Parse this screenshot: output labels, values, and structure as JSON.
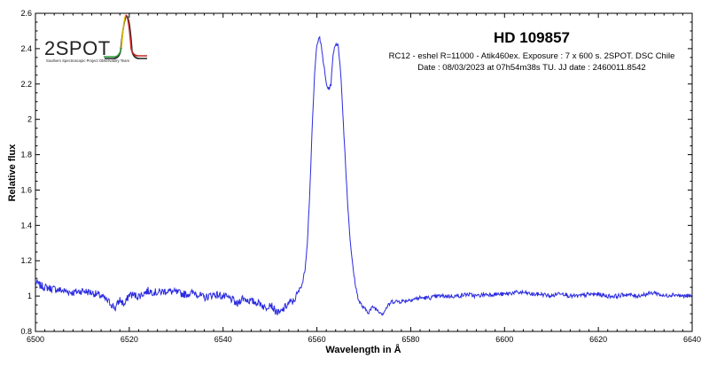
{
  "logo": {
    "name": "2SPOT",
    "tagline": "Southern Spectroscopic Project Observatory Team",
    "colors": [
      "#2e9e3e",
      "#e0b800",
      "#c62828"
    ]
  },
  "chart_data": {
    "type": "line",
    "title": "HD 109857",
    "subtitle_lines": [
      "RC12 - eshel R=11000 - Atik460ex. Exposure : 7 x 600 s. 2SPOT. DSC Chile",
      "Date : 08/03/2023 at 07h54m38s TU. JJ date : 2460011.8542"
    ],
    "xlabel": "Wavelength in Å",
    "ylabel": "Relative flux",
    "xlim": [
      6500,
      6640
    ],
    "ylim": [
      0.8,
      2.6
    ],
    "xticks": [
      "6500",
      "6520",
      "6540",
      "6560",
      "6580",
      "6600",
      "6620",
      "6640"
    ],
    "yticks": [
      "0.8",
      "1",
      "1.2",
      "1.4",
      "1.6",
      "1.8",
      "2",
      "2.2",
      "2.4",
      "2.6"
    ],
    "grid": false,
    "line_color": "#2a2ae0",
    "series": [
      {
        "x": [
          6500,
          6501,
          6502,
          6504,
          6506,
          6508,
          6510,
          6512,
          6514,
          6515,
          6516,
          6517,
          6518,
          6519,
          6520,
          6522,
          6524,
          6526,
          6528,
          6530,
          6532,
          6534,
          6536,
          6538,
          6540,
          6542,
          6543,
          6544,
          6546,
          6548,
          6549,
          6550,
          6551,
          6552,
          6553,
          6554,
          6555,
          6556,
          6557,
          6557.5,
          6558,
          6558.5,
          6559,
          6559.5,
          6560,
          6560.5,
          6561,
          6561.5,
          6562,
          6562.5,
          6563,
          6563.5,
          6564,
          6564.5,
          6565,
          6565.5,
          6566,
          6566.5,
          6567,
          6567.5,
          6568,
          6568.5,
          6569,
          6570,
          6571,
          6572,
          6573,
          6574,
          6575,
          6576,
          6578,
          6580,
          6582,
          6584,
          6586,
          6588,
          6590,
          6592,
          6594,
          6596,
          6598,
          6600,
          6602,
          6604,
          6606,
          6608,
          6610,
          6612,
          6614,
          6616,
          6618,
          6620,
          6622,
          6624,
          6626,
          6628,
          6630,
          6632,
          6634,
          6636,
          6638,
          6640
        ],
        "y": [
          1.08,
          1.06,
          1.05,
          1.04,
          1.03,
          1.02,
          1.03,
          1.02,
          1.0,
          0.98,
          0.96,
          0.93,
          0.98,
          0.95,
          1.01,
          1.0,
          1.03,
          1.02,
          1.03,
          1.02,
          1.01,
          1.02,
          0.99,
          1.01,
          1.0,
          0.98,
          0.95,
          0.99,
          0.97,
          0.96,
          0.93,
          0.96,
          0.92,
          0.9,
          0.93,
          0.96,
          0.97,
          1.02,
          1.08,
          1.16,
          1.32,
          1.6,
          1.95,
          2.25,
          2.43,
          2.47,
          2.4,
          2.3,
          2.2,
          2.17,
          2.2,
          2.38,
          2.43,
          2.42,
          2.3,
          2.05,
          1.8,
          1.55,
          1.35,
          1.2,
          1.1,
          1.02,
          0.97,
          0.93,
          0.91,
          0.94,
          0.92,
          0.9,
          0.94,
          0.97,
          0.97,
          0.98,
          0.99,
          0.99,
          1.0,
          1.0,
          1.0,
          1.01,
          1.0,
          1.01,
          1.01,
          1.01,
          1.02,
          1.02,
          1.01,
          1.01,
          1.0,
          1.02,
          1.0,
          1.0,
          1.01,
          1.01,
          1.0,
          1.0,
          1.01,
          1.0,
          1.01,
          1.02,
          1.0,
          1.01,
          1.0,
          1.0
        ]
      }
    ]
  }
}
